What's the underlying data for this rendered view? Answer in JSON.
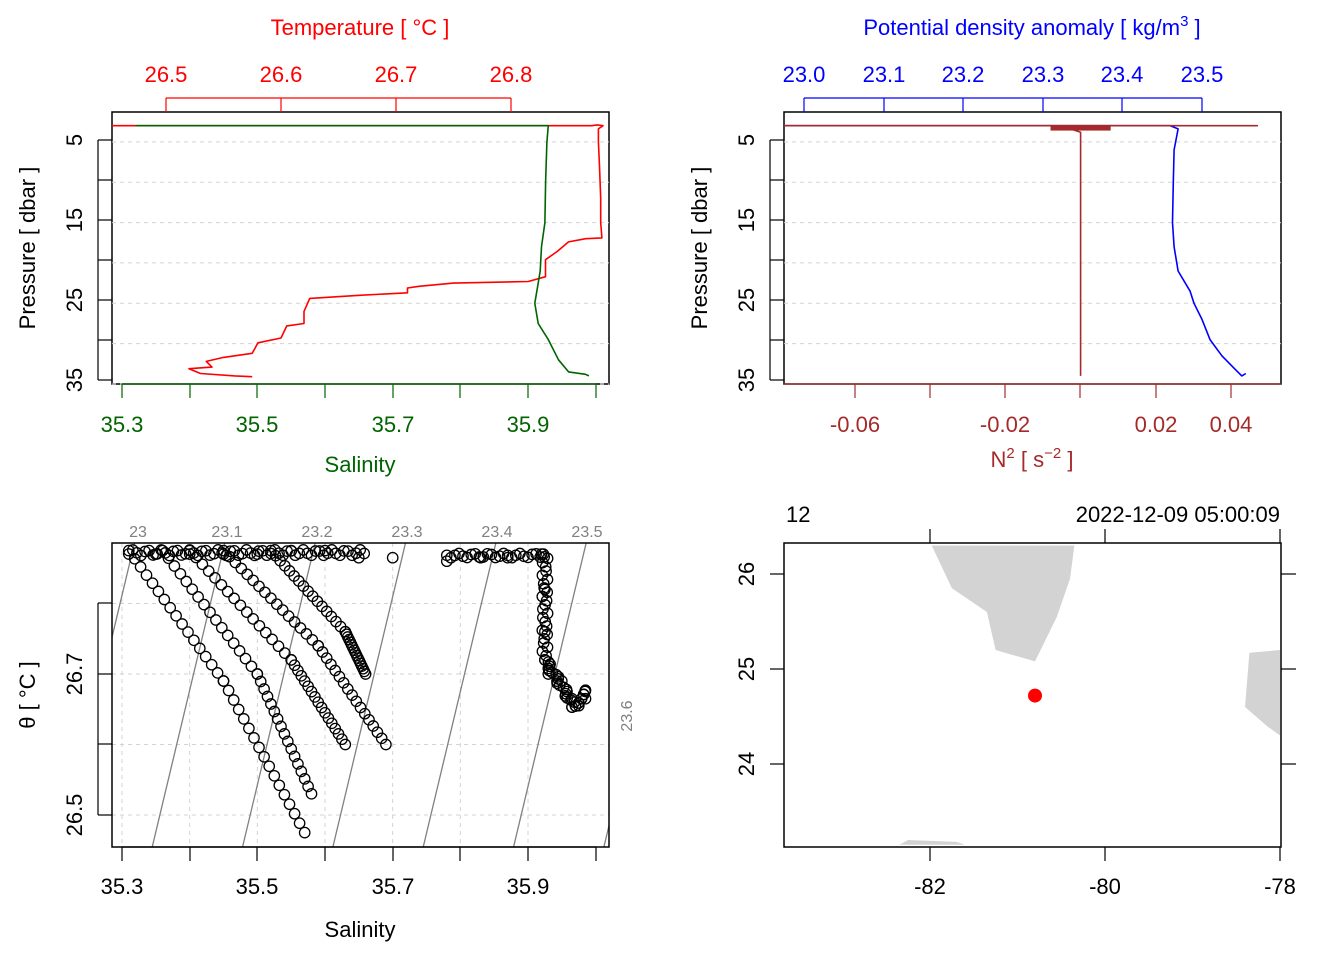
{
  "colors": {
    "temperature": "#ff0000",
    "salinity": "#006400",
    "density": "#0000ff",
    "n2": "#a52a2a",
    "grid": "#d3d3d3",
    "contour": "#808080",
    "land": "#d3d3d3",
    "station": "#ff0000",
    "axis": "#000000"
  },
  "chart_data": [
    {
      "type": "line",
      "panel": "T-S profile",
      "top_axis": {
        "label": "Temperature [ °C ]",
        "ticks": [
          "26.5",
          "26.6",
          "26.7",
          "26.8"
        ],
        "range": [
          26.49,
          26.9
        ]
      },
      "bottom_axis": {
        "label": "Salinity",
        "ticks": [
          "35.3",
          "35.5",
          "35.7",
          "35.9"
        ],
        "range": [
          35.31,
          36.0
        ]
      },
      "left_axis": {
        "label": "Pressure [ dbar ]",
        "ticks": [
          "5",
          "15",
          "25",
          "35"
        ],
        "range": [
          35,
          1.3
        ],
        "reversed": true
      },
      "grid": "horizontal dotted",
      "series": [
        {
          "variable": "temperature",
          "points": [
            [
              26.42,
              3.0
            ],
            [
              26.87,
              3.0
            ],
            [
              26.875,
              2.9
            ],
            [
              26.88,
              3.0
            ],
            [
              26.876,
              3.4
            ],
            [
              26.876,
              5.0
            ],
            [
              26.877,
              8.0
            ],
            [
              26.878,
              12.0
            ],
            [
              26.878,
              15.0
            ],
            [
              26.879,
              16.9
            ],
            [
              26.865,
              17.0
            ],
            [
              26.85,
              17.4
            ],
            [
              26.84,
              18.6
            ],
            [
              26.83,
              19.6
            ],
            [
              26.83,
              21.7
            ],
            [
              26.815,
              22.3
            ],
            [
              26.75,
              22.5
            ],
            [
              26.72,
              22.9
            ],
            [
              26.71,
              23.1
            ],
            [
              26.71,
              23.7
            ],
            [
              26.67,
              24.0
            ],
            [
              26.625,
              24.4
            ],
            [
              26.62,
              26.0
            ],
            [
              26.62,
              27.5
            ],
            [
              26.605,
              27.8
            ],
            [
              26.6,
              29.3
            ],
            [
              26.58,
              29.9
            ],
            [
              26.575,
              31.2
            ],
            [
              26.55,
              31.7
            ],
            [
              26.535,
              32.2
            ],
            [
              26.54,
              32.9
            ],
            [
              26.52,
              33.1
            ],
            [
              26.53,
              33.7
            ],
            [
              26.56,
              34.0
            ],
            [
              26.575,
              34.1
            ]
          ]
        },
        {
          "variable": "salinity",
          "points": [
            [
              35.32,
              3.0
            ],
            [
              35.93,
              3.0
            ],
            [
              35.928,
              5.0
            ],
            [
              35.926,
              10.0
            ],
            [
              35.925,
              15.0
            ],
            [
              35.92,
              18.0
            ],
            [
              35.918,
              21.0
            ],
            [
              35.915,
              22.5
            ],
            [
              35.91,
              25.0
            ],
            [
              35.915,
              27.5
            ],
            [
              35.93,
              29.5
            ],
            [
              35.945,
              32.0
            ],
            [
              35.96,
              33.5
            ],
            [
              35.985,
              33.8
            ],
            [
              35.99,
              34.0
            ]
          ]
        }
      ]
    },
    {
      "type": "line",
      "panel": "density and N2 profile",
      "top_axis": {
        "label": "Potential density anomaly [ kg/m",
        "label_sup": "3",
        "label_tail": " ]",
        "ticks": [
          "23.0",
          "23.1",
          "23.2",
          "23.3",
          "23.4",
          "23.5"
        ],
        "range": [
          22.97,
          23.58
        ]
      },
      "bottom_axis": {
        "label": "N",
        "label_sup": "2",
        "label_mid": " [ s",
        "label_sup2": "−2",
        "label_tail": " ]",
        "ticks": [
          "-0.06",
          "-0.02",
          "0.02",
          "0.04"
        ],
        "tick_values": [
          -0.06,
          -0.02,
          0.02,
          0.04
        ],
        "range": [
          -0.08,
          0.047
        ]
      },
      "left_axis": {
        "label": "Pressure [ dbar ]",
        "ticks": [
          "5",
          "15",
          "25",
          "35"
        ],
        "range": [
          35,
          1.3
        ],
        "reversed": true
      },
      "grid": "horizontal dotted",
      "series": [
        {
          "variable": "density",
          "points": [
            [
              22.97,
              3.0
            ],
            [
              23.46,
              3.0
            ],
            [
              23.47,
              3.4
            ],
            [
              23.465,
              6.0
            ],
            [
              23.464,
              10.0
            ],
            [
              23.463,
              15.0
            ],
            [
              23.465,
              18.0
            ],
            [
              23.47,
              21.0
            ],
            [
              23.485,
              23.5
            ],
            [
              23.49,
              25.0
            ],
            [
              23.5,
              27.0
            ],
            [
              23.51,
              29.5
            ],
            [
              23.525,
              31.5
            ],
            [
              23.54,
              33.0
            ],
            [
              23.55,
              34.0
            ],
            [
              23.555,
              33.7
            ]
          ]
        },
        {
          "variable": "n2",
          "points": [
            [
              -0.08,
              3.0
            ],
            [
              0.047,
              3.0
            ],
            [
              0.0,
              3.0
            ],
            [
              -0.002,
              3.5
            ],
            [
              0.0,
              3.8
            ],
            [
              0.0,
              20.0
            ],
            [
              0.0,
              34.0
            ]
          ]
        }
      ]
    },
    {
      "type": "scatter",
      "panel": "TS diagram",
      "xlabel": "Salinity",
      "ylabel": "θ [ °C ]",
      "x_ticks": [
        "35.3",
        "35.5",
        "35.7",
        "35.9"
      ],
      "y_ticks": [
        "26.5",
        "26.7"
      ],
      "xlim": [
        35.29,
        36.0
      ],
      "ylim": [
        26.455,
        26.9
      ],
      "grid": "dotted",
      "isopycnal_labels": [
        "23",
        "23.1",
        "23.2",
        "23.3",
        "23.4",
        "23.5",
        "23.6"
      ],
      "isopycnal_values": [
        23.0,
        23.1,
        23.2,
        23.3,
        23.4,
        23.5,
        23.6
      ],
      "tracks": [
        {
          "x": [
            35.31,
            35.45,
            35.57
          ],
          "y": [
            26.875,
            26.69,
            26.475
          ]
        },
        {
          "x": [
            35.36,
            35.5,
            35.58
          ],
          "y": [
            26.875,
            26.7,
            26.53
          ]
        },
        {
          "x": [
            35.4,
            35.55,
            35.63
          ],
          "y": [
            26.875,
            26.72,
            26.6
          ]
        },
        {
          "x": [
            35.45,
            35.59,
            35.69
          ],
          "y": [
            26.875,
            26.74,
            26.6
          ]
        },
        {
          "x": [
            35.52,
            35.63,
            35.66
          ],
          "y": [
            26.875,
            26.76,
            26.7
          ]
        }
      ],
      "points": [
        [
          35.35,
          26.87
        ],
        [
          35.4,
          26.87
        ],
        [
          35.45,
          26.87
        ],
        [
          35.5,
          26.87
        ],
        [
          35.55,
          26.875
        ],
        [
          35.6,
          26.875
        ],
        [
          35.65,
          26.865
        ],
        [
          35.7,
          26.865
        ],
        [
          35.78,
          26.86
        ],
        [
          35.83,
          26.865
        ],
        [
          35.87,
          26.865
        ],
        [
          35.92,
          26.87
        ],
        [
          35.925,
          26.82
        ],
        [
          35.925,
          26.76
        ],
        [
          35.925,
          26.72
        ],
        [
          35.93,
          26.7
        ],
        [
          35.95,
          26.69
        ],
        [
          35.965,
          26.665
        ],
        [
          35.975,
          26.655
        ],
        [
          35.985,
          26.665
        ]
      ]
    },
    {
      "type": "map",
      "panel": "station map",
      "top_left_text": "12",
      "top_right_text": "2022-12-09 05:00:09",
      "x_ticks": [
        "-82",
        "-80",
        "-78"
      ],
      "y_ticks": [
        "24",
        "25",
        "26"
      ],
      "xlim": [
        -83.7,
        -78.0
      ],
      "ylim": [
        23.15,
        26.3
      ],
      "station": {
        "lon": -80.8,
        "lat": 24.72
      },
      "land": [
        [
          [
            -81.98,
            26.3
          ],
          [
            -81.75,
            25.85
          ],
          [
            -81.35,
            25.6
          ],
          [
            -81.25,
            25.2
          ],
          [
            -80.8,
            25.08
          ],
          [
            -80.55,
            25.55
          ],
          [
            -80.4,
            25.95
          ],
          [
            -80.35,
            26.3
          ]
        ],
        [
          [
            -78.0,
            25.2
          ],
          [
            -78.35,
            25.17
          ],
          [
            -78.4,
            24.6
          ],
          [
            -78.15,
            24.4
          ],
          [
            -78.0,
            24.3
          ]
        ],
        [
          [
            -82.35,
            23.15
          ],
          [
            -82.25,
            23.2
          ],
          [
            -81.7,
            23.18
          ],
          [
            -81.6,
            23.15
          ]
        ]
      ]
    }
  ]
}
